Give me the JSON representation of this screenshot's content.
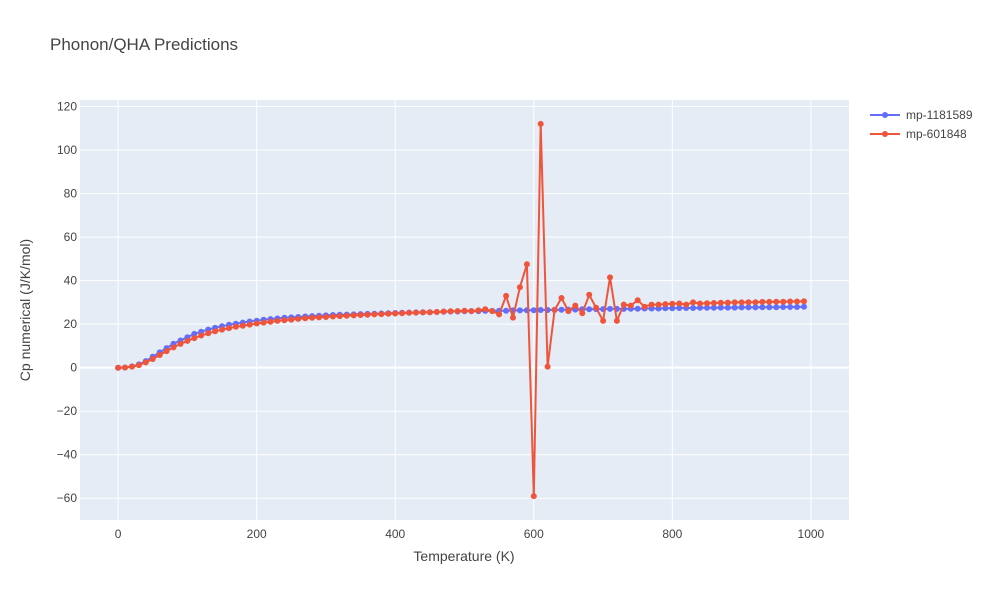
{
  "chart_data": {
    "type": "line",
    "title": "Phonon/QHA Predictions",
    "xlabel": "Temperature (K)",
    "ylabel": "Cp numerical (J/K/mol)",
    "xlim": [
      -55,
      1055
    ],
    "ylim": [
      -70,
      123
    ],
    "xticks": [
      0,
      200,
      400,
      600,
      800,
      1000
    ],
    "yticks": [
      -60,
      -40,
      -20,
      0,
      20,
      40,
      60,
      80,
      100,
      120
    ],
    "tick_labels": {
      "x": [
        "0",
        "200",
        "400",
        "600",
        "800",
        "1000"
      ],
      "y": [
        "−60",
        "−40",
        "−20",
        "0",
        "20",
        "40",
        "60",
        "80",
        "100",
        "120"
      ]
    },
    "legend_position": "top-right",
    "series": [
      {
        "name": "mp-1181589",
        "color": "#636efa",
        "x": [
          0,
          10,
          20,
          30,
          40,
          50,
          60,
          70,
          80,
          90,
          100,
          110,
          120,
          130,
          140,
          150,
          160,
          170,
          180,
          190,
          200,
          210,
          220,
          230,
          240,
          250,
          260,
          270,
          280,
          290,
          300,
          310,
          320,
          330,
          340,
          350,
          360,
          370,
          380,
          390,
          400,
          410,
          420,
          430,
          440,
          450,
          460,
          470,
          480,
          490,
          500,
          510,
          520,
          530,
          540,
          550,
          560,
          570,
          580,
          590,
          600,
          610,
          620,
          630,
          640,
          650,
          660,
          670,
          680,
          690,
          700,
          710,
          720,
          730,
          740,
          750,
          760,
          770,
          780,
          790,
          800,
          810,
          820,
          830,
          840,
          850,
          860,
          870,
          880,
          890,
          900,
          910,
          920,
          930,
          940,
          950,
          960,
          970,
          980,
          990
        ],
        "y": [
          0,
          0.1,
          0.6,
          1.5,
          3,
          5,
          7,
          9,
          11,
          12.5,
          14,
          15.5,
          16.5,
          17.5,
          18.3,
          19,
          19.7,
          20.2,
          20.7,
          21.2,
          21.6,
          22,
          22.3,
          22.6,
          22.9,
          23.1,
          23.3,
          23.5,
          23.7,
          23.9,
          24,
          24.2,
          24.3,
          24.4,
          24.5,
          24.6,
          24.7,
          24.8,
          24.9,
          25,
          25.1,
          25.2,
          25.3,
          25.4,
          25.5,
          25.5,
          25.6,
          25.7,
          25.8,
          25.8,
          25.9,
          26,
          26,
          26.1,
          26.1,
          26.2,
          26.2,
          26.3,
          26.3,
          26.4,
          26.4,
          26.5,
          26.5,
          26.6,
          26.6,
          26.7,
          26.7,
          26.8,
          26.8,
          26.9,
          26.9,
          27,
          27,
          27,
          27.1,
          27.1,
          27.2,
          27.2,
          27.2,
          27.3,
          27.3,
          27.4,
          27.4,
          27.4,
          27.5,
          27.5,
          27.5,
          27.6,
          27.6,
          27.6,
          27.7,
          27.7,
          27.7,
          27.8,
          27.8,
          27.8,
          27.9,
          27.9,
          27.9,
          28
        ]
      },
      {
        "name": "mp-601848",
        "color": "#ef553b",
        "x": [
          0,
          10,
          20,
          30,
          40,
          50,
          60,
          70,
          80,
          90,
          100,
          110,
          120,
          130,
          140,
          150,
          160,
          170,
          180,
          190,
          200,
          210,
          220,
          230,
          240,
          250,
          260,
          270,
          280,
          290,
          300,
          310,
          320,
          330,
          340,
          350,
          360,
          370,
          380,
          390,
          400,
          410,
          420,
          430,
          440,
          450,
          460,
          470,
          480,
          490,
          500,
          510,
          520,
          530,
          540,
          550,
          560,
          570,
          580,
          590,
          600,
          610,
          620,
          630,
          640,
          650,
          660,
          670,
          680,
          690,
          700,
          710,
          720,
          730,
          740,
          750,
          760,
          770,
          780,
          790,
          800,
          810,
          820,
          830,
          840,
          850,
          860,
          870,
          880,
          890,
          900,
          910,
          920,
          930,
          940,
          950,
          960,
          970,
          980,
          990
        ],
        "y": [
          0,
          0.1,
          0.5,
          1.2,
          2.4,
          4,
          5.8,
          7.6,
          9.3,
          10.9,
          12.3,
          13.6,
          14.8,
          15.8,
          16.7,
          17.5,
          18.2,
          18.8,
          19.3,
          19.8,
          20.3,
          20.7,
          21.1,
          21.5,
          21.8,
          22.1,
          22.4,
          22.7,
          22.9,
          23.1,
          23.3,
          23.5,
          23.7,
          23.9,
          24,
          24.2,
          24.3,
          24.5,
          24.6,
          24.8,
          24.9,
          25,
          25.2,
          25.3,
          25.4,
          25.5,
          25.6,
          25.8,
          25.9,
          26,
          26.2,
          26,
          26.3,
          26.8,
          26,
          24.5,
          33,
          23,
          37,
          47.5,
          -59,
          112,
          0.5,
          26.5,
          32,
          26,
          28.5,
          25,
          33.5,
          27.5,
          21.5,
          41.5,
          21.5,
          29,
          28.5,
          31,
          28,
          29,
          29,
          29.2,
          29.4,
          29.5,
          29,
          30,
          29.5,
          29.6,
          29.7,
          29.8,
          29.9,
          30,
          30,
          30.1,
          30.1,
          30.2,
          30.2,
          30.3,
          30.3,
          30.4,
          30.4,
          30.5
        ]
      }
    ]
  }
}
